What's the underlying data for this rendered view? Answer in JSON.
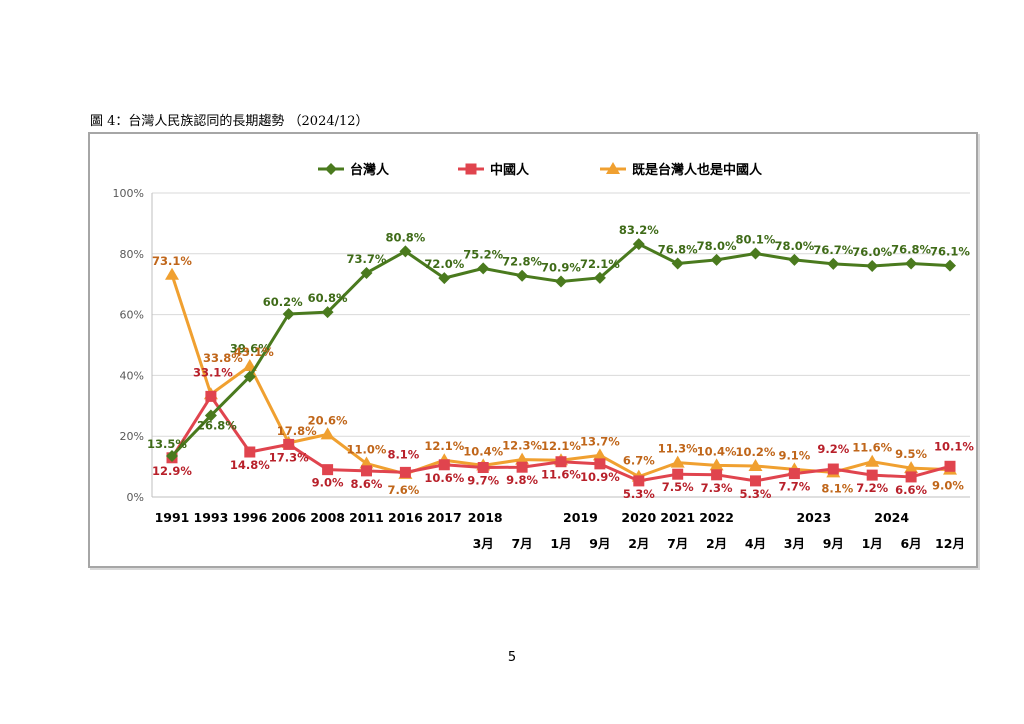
{
  "figure_title": "圖 4：台灣人民族認同的長期趨勢 （2024/12）",
  "page_number": "5",
  "colors": {
    "taiwanese": "#4a7a1e",
    "chinese": "#e0444e",
    "both": "#f0a030",
    "taiwanese_label": "#3f6b18",
    "chinese_label": "#b8202a",
    "both_label": "#c0661a",
    "grid": "#d9d9d9",
    "axis_text": "#595959"
  },
  "chart_data": {
    "type": "line",
    "legend_position": "top",
    "grid": true,
    "ylim": [
      0,
      100
    ],
    "yticks": [
      "0%",
      "20%",
      "40%",
      "60%",
      "80%",
      "100%"
    ],
    "x_years": [
      "1991",
      "1993",
      "1996",
      "2006",
      "2008",
      "2011",
      "2016",
      "2017",
      "2018",
      "",
      "2019",
      "",
      "2020",
      "2021",
      "2022",
      "",
      "2023",
      "",
      "2024",
      "",
      ""
    ],
    "x_months": [
      "",
      "",
      "",
      "",
      "",
      "",
      "",
      "",
      "3月",
      "7月",
      "1月",
      "9月",
      "2月",
      "7月",
      "2月",
      "4月",
      "3月",
      "9月",
      "1月",
      "6月",
      "12月"
    ],
    "series": [
      {
        "key": "taiwanese",
        "name": "台灣人",
        "marker": "diamond",
        "values": [
          13.5,
          26.8,
          39.6,
          60.2,
          60.8,
          73.7,
          80.8,
          72.0,
          75.2,
          72.8,
          70.9,
          72.1,
          83.2,
          76.8,
          78.0,
          80.1,
          78.0,
          76.7,
          76.0,
          76.8,
          76.1
        ],
        "labels": [
          "13.5%",
          "26.8%",
          "39.6%",
          "60.2%",
          "60.8%",
          "73.7%",
          "80.8%",
          "72.0%",
          "75.2%",
          "72.8%",
          "70.9%",
          "72.1%",
          "83.2%",
          "76.8%",
          "78.0%",
          "80.1%",
          "78.0%",
          "76.7%",
          "76.0%",
          "76.8%",
          "76.1%"
        ]
      },
      {
        "key": "chinese",
        "name": "中國人",
        "marker": "square",
        "values": [
          12.9,
          33.1,
          14.8,
          17.3,
          9.0,
          8.6,
          8.1,
          10.6,
          9.7,
          9.8,
          11.6,
          10.9,
          5.3,
          7.5,
          7.3,
          5.3,
          7.7,
          9.2,
          7.2,
          6.6,
          10.1
        ],
        "labels": [
          "12.9%",
          "33.1%",
          "14.8%",
          "17.3%",
          "9.0%",
          "8.6%",
          "8.1%",
          "10.6%",
          "9.7%",
          "9.8%",
          "11.6%",
          "10.9%",
          "5.3%",
          "7.5%",
          "7.3%",
          "5.3%",
          "7.7%",
          "9.2%",
          "7.2%",
          "6.6%",
          "10.1%"
        ]
      },
      {
        "key": "both",
        "name": "既是台灣人也是中國人",
        "marker": "triangle",
        "values": [
          73.1,
          33.8,
          43.1,
          17.8,
          20.6,
          11.0,
          7.6,
          12.1,
          10.4,
          12.3,
          12.1,
          13.7,
          6.7,
          11.3,
          10.4,
          10.2,
          9.1,
          8.1,
          11.6,
          9.5,
          9.0
        ],
        "labels": [
          "73.1%",
          "33.8%",
          "43.1%",
          "17.8%",
          "20.6%",
          "11.0%",
          "7.6%",
          "12.1%",
          "10.4%",
          "12.3%",
          "12.1%",
          "13.7%",
          "6.7%",
          "11.3%",
          "10.4%",
          "10.2%",
          "9.1%",
          "8.1%",
          "11.6%",
          "9.5%",
          "9.0%"
        ]
      }
    ]
  }
}
